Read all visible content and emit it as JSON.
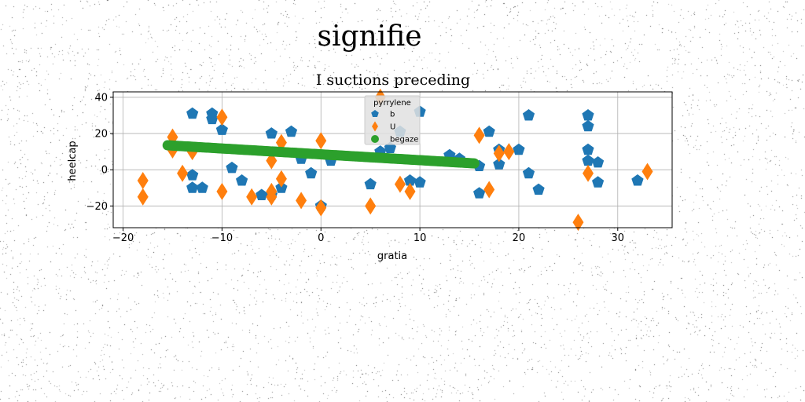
{
  "suptitle": "signifie",
  "chart_data": {
    "type": "scatter",
    "title": "I suctions preceding",
    "xlabel": "gratia",
    "ylabel": "heelcap",
    "xlim": [
      -21,
      35.5
    ],
    "ylim": [
      -32,
      43
    ],
    "xticks": [
      -20,
      -10,
      0,
      10,
      20,
      30
    ],
    "yticks": [
      -20,
      0,
      20,
      40
    ],
    "grid": true,
    "legend": {
      "title": "pyrrylene",
      "placement": "top-center"
    },
    "series": [
      {
        "name": "b",
        "marker": "pentagon",
        "color": "#1f77b4",
        "points": [
          [
            -13,
            31
          ],
          [
            -11,
            31
          ],
          [
            -11,
            28
          ],
          [
            -10,
            22
          ],
          [
            -13,
            -3
          ],
          [
            -13,
            -10
          ],
          [
            -12,
            -10
          ],
          [
            -9,
            1
          ],
          [
            -8,
            -6
          ],
          [
            -6,
            -14
          ],
          [
            -5,
            -14
          ],
          [
            -5,
            20
          ],
          [
            -4,
            -10
          ],
          [
            -3,
            21
          ],
          [
            -2,
            6
          ],
          [
            -1,
            -2
          ],
          [
            0,
            -20
          ],
          [
            1,
            5
          ],
          [
            5,
            -8
          ],
          [
            6,
            10
          ],
          [
            7,
            12
          ],
          [
            8,
            21
          ],
          [
            9,
            -6
          ],
          [
            10,
            -7
          ],
          [
            10,
            32
          ],
          [
            13,
            8
          ],
          [
            14,
            6
          ],
          [
            16,
            -13
          ],
          [
            16,
            2
          ],
          [
            17,
            21
          ],
          [
            18,
            11
          ],
          [
            18,
            3
          ],
          [
            20,
            11
          ],
          [
            21,
            -2
          ],
          [
            21,
            30
          ],
          [
            22,
            -11
          ],
          [
            27,
            30
          ],
          [
            27,
            24
          ],
          [
            27,
            11
          ],
          [
            27,
            5
          ],
          [
            28,
            4
          ],
          [
            28,
            -7
          ],
          [
            32,
            -6
          ]
        ]
      },
      {
        "name": "U",
        "marker": "diamond",
        "color": "#ff7f0e",
        "points": [
          [
            -18,
            -6
          ],
          [
            -18,
            -15
          ],
          [
            -15,
            18
          ],
          [
            -15,
            11
          ],
          [
            -14,
            -2
          ],
          [
            -13,
            10
          ],
          [
            -10,
            29
          ],
          [
            -10,
            -12
          ],
          [
            -7,
            -15
          ],
          [
            -5,
            5
          ],
          [
            -5,
            -15
          ],
          [
            -5,
            -12
          ],
          [
            -4,
            -5
          ],
          [
            -4,
            15
          ],
          [
            -2,
            -17
          ],
          [
            0,
            -21
          ],
          [
            0,
            16
          ],
          [
            5,
            -20
          ],
          [
            6,
            40
          ],
          [
            8,
            -8
          ],
          [
            9,
            -12
          ],
          [
            16,
            19
          ],
          [
            17,
            -11
          ],
          [
            18,
            9
          ],
          [
            19,
            10
          ],
          [
            26,
            -29
          ],
          [
            27,
            -2
          ],
          [
            33,
            -1
          ]
        ]
      },
      {
        "name": "begaze",
        "marker": "circle",
        "color": "#2ca02c",
        "line": {
          "x_start": -15.5,
          "y_start": 13.5,
          "x_end": 15.5,
          "y_end": 3.5,
          "count": 200
        }
      }
    ]
  }
}
